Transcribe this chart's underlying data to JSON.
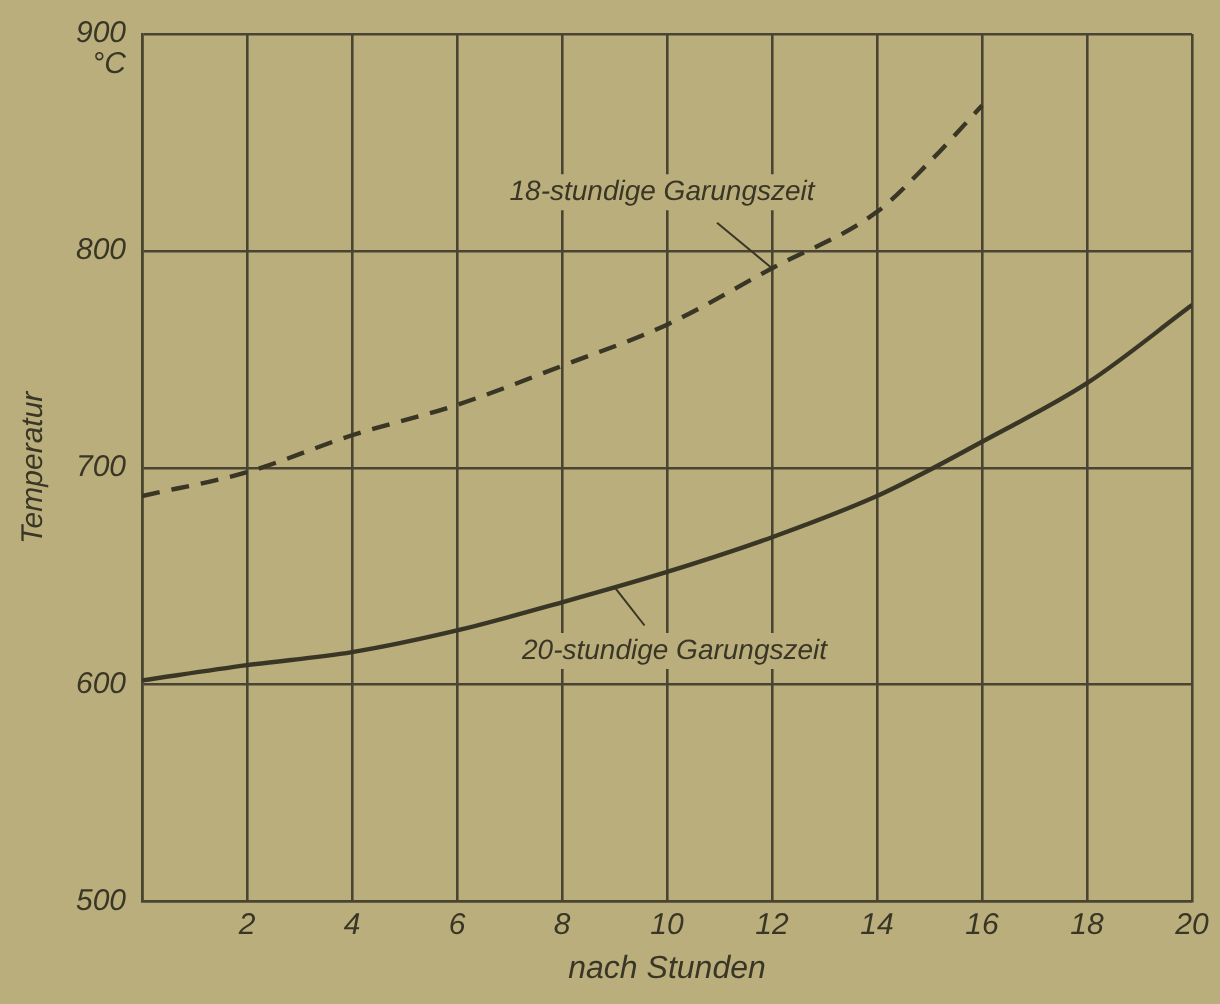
{
  "chart_data": {
    "type": "line",
    "xlabel": "nach Stunden",
    "ylabel": "Temperatur",
    "xlim": [
      0,
      20
    ],
    "xticks": [
      {
        "value": 0,
        "label": null
      },
      2,
      4,
      6,
      8,
      10,
      12,
      14,
      16,
      18,
      20
    ],
    "ylim": [
      500,
      900
    ],
    "yticks": [
      500,
      600,
      700,
      800,
      900
    ],
    "grid": true,
    "legend": false,
    "marker": "none",
    "series": [
      {
        "color": "#3a3626",
        "line_style": "dashed",
        "x": [
          0,
          2,
          4,
          6,
          8,
          10,
          12,
          14,
          15,
          16
        ],
        "values": [
          687,
          698,
          715,
          729,
          747,
          766,
          792,
          818,
          841,
          867
        ]
      },
      {
        "color": "#3a3626",
        "line_style": "solid",
        "x": [
          0,
          2,
          4,
          6,
          8,
          10,
          12,
          14,
          15,
          16,
          18,
          20
        ],
        "values": [
          602,
          609,
          615,
          625,
          638,
          652,
          668,
          687,
          699,
          712,
          739,
          775
        ]
      }
    ],
    "annotations": [
      "°C",
      {
        "text": "18-stundige Garungszeit",
        "x": 12,
        "y": 792
      },
      {
        "text": "20-stundige Garungszeit",
        "x": 9,
        "y": 645
      }
    ]
  }
}
